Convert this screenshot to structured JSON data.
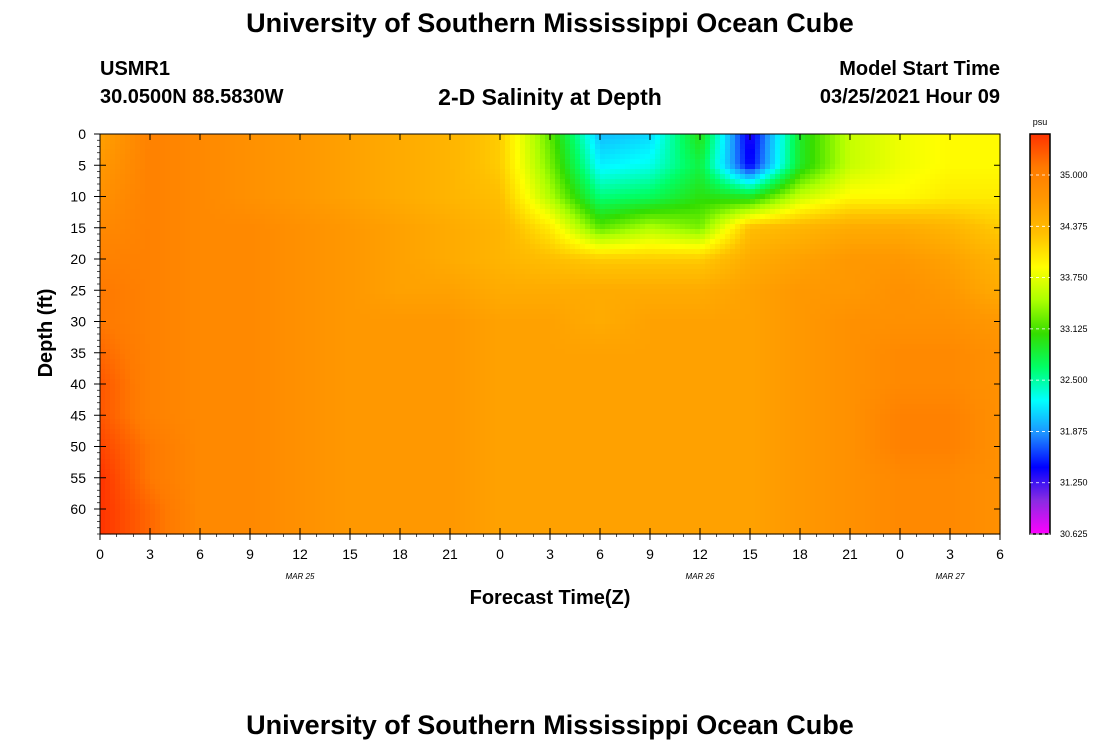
{
  "header": {
    "title": "University of Southern Mississippi Ocean Cube",
    "footer_title": "University of Southern Mississippi Ocean Cube",
    "station_id": "USMR1",
    "station_coords": "30.0500N 88.5830W",
    "chart_title": "2-D Salinity at Depth",
    "model_start_label": "Model Start Time",
    "model_start_value": "03/25/2021 Hour 09"
  },
  "colors": {
    "scale": [
      "#ff00ff",
      "#8a2be2",
      "#0000ff",
      "#1e90ff",
      "#00ffff",
      "#00ff66",
      "#33dd00",
      "#aaff00",
      "#ffff00",
      "#ffc000",
      "#ff9900",
      "#ff7a00",
      "#ff3300"
    ],
    "tick": "#000000"
  },
  "chart_data": {
    "type": "heatmap",
    "title": "2-D Salinity at Depth",
    "xlabel": "Forecast Time(Z)",
    "ylabel": "Depth (ft)",
    "x_tick_labels": [
      "0",
      "3",
      "6",
      "9",
      "12",
      "15",
      "18",
      "21",
      "0",
      "3",
      "6",
      "9",
      "12",
      "15",
      "18",
      "21",
      "0",
      "3",
      "6"
    ],
    "x_range_hours": [
      0,
      54
    ],
    "date_labels": [
      {
        "label": "MAR 25",
        "hour": 12
      },
      {
        "label": "MAR 26",
        "hour": 36
      },
      {
        "label": "MAR 27",
        "hour": 51
      }
    ],
    "y_tick_labels": [
      "0",
      "5",
      "10",
      "15",
      "20",
      "25",
      "30",
      "35",
      "40",
      "45",
      "50",
      "55",
      "60"
    ],
    "ylim": [
      0,
      64
    ],
    "y_inverted": true,
    "colorbar": {
      "unit": "psu",
      "tick_labels": [
        "35.000",
        "34.375",
        "33.750",
        "33.125",
        "32.500",
        "31.875",
        "31.250",
        "30.625"
      ],
      "range": [
        30.625,
        35.5
      ]
    },
    "grid_hours": [
      0,
      3,
      6,
      9,
      12,
      15,
      18,
      21,
      24,
      27,
      30,
      33,
      36,
      39,
      42,
      45,
      48,
      51,
      54
    ],
    "grid_depths": [
      0,
      5,
      10,
      15,
      20,
      25,
      30,
      35,
      40,
      45,
      50,
      55,
      60,
      64
    ],
    "values": [
      [
        34.6,
        35.0,
        34.9,
        34.8,
        34.7,
        34.6,
        34.5,
        34.4,
        34.2,
        33.2,
        32.0,
        32.1,
        33.0,
        31.3,
        32.9,
        33.6,
        33.8,
        33.9,
        33.9
      ],
      [
        34.7,
        35.0,
        34.9,
        34.8,
        34.7,
        34.6,
        34.5,
        34.4,
        34.2,
        33.3,
        32.2,
        32.3,
        32.8,
        31.4,
        32.9,
        33.6,
        33.8,
        33.9,
        33.9
      ],
      [
        34.8,
        35.0,
        34.9,
        34.8,
        34.7,
        34.6,
        34.5,
        34.4,
        34.3,
        33.5,
        32.6,
        32.7,
        33.0,
        32.9,
        33.6,
        33.9,
        33.9,
        34.0,
        34.0
      ],
      [
        34.9,
        35.0,
        34.9,
        34.9,
        34.8,
        34.7,
        34.6,
        34.5,
        34.4,
        34.0,
        33.2,
        33.5,
        33.3,
        34.3,
        34.4,
        34.5,
        34.5,
        34.4,
        34.2
      ],
      [
        35.0,
        35.0,
        34.9,
        34.9,
        34.8,
        34.7,
        34.6,
        34.5,
        34.4,
        34.3,
        34.2,
        34.2,
        34.2,
        34.5,
        34.6,
        34.7,
        34.7,
        34.6,
        34.4
      ],
      [
        35.1,
        35.0,
        34.9,
        34.9,
        34.8,
        34.7,
        34.6,
        34.6,
        34.5,
        34.5,
        34.5,
        34.5,
        34.5,
        34.6,
        34.7,
        34.7,
        34.8,
        34.7,
        34.5
      ],
      [
        35.1,
        35.0,
        34.9,
        34.9,
        34.8,
        34.7,
        34.7,
        34.7,
        34.6,
        34.6,
        34.5,
        34.6,
        34.6,
        34.6,
        34.7,
        34.8,
        34.8,
        34.8,
        34.7
      ],
      [
        35.2,
        35.0,
        34.9,
        34.9,
        34.8,
        34.7,
        34.7,
        34.7,
        34.6,
        34.6,
        34.6,
        34.6,
        34.6,
        34.6,
        34.7,
        34.8,
        34.9,
        34.9,
        34.8
      ],
      [
        35.3,
        35.0,
        34.9,
        34.9,
        34.8,
        34.7,
        34.7,
        34.7,
        34.6,
        34.6,
        34.6,
        34.6,
        34.6,
        34.6,
        34.7,
        34.8,
        34.9,
        34.9,
        34.8
      ],
      [
        35.3,
        35.0,
        34.9,
        34.9,
        34.8,
        34.7,
        34.7,
        34.7,
        34.6,
        34.6,
        34.6,
        34.6,
        34.6,
        34.6,
        34.7,
        34.8,
        35.0,
        35.0,
        34.8
      ],
      [
        35.4,
        35.1,
        34.9,
        34.9,
        34.8,
        34.7,
        34.7,
        34.7,
        34.6,
        34.6,
        34.6,
        34.6,
        34.6,
        34.6,
        34.7,
        34.8,
        35.0,
        35.0,
        34.8
      ],
      [
        35.5,
        35.1,
        34.9,
        34.9,
        34.8,
        34.7,
        34.7,
        34.7,
        34.6,
        34.6,
        34.6,
        34.6,
        34.6,
        34.6,
        34.7,
        34.8,
        34.9,
        34.9,
        34.8
      ],
      [
        35.5,
        35.2,
        34.9,
        34.9,
        34.8,
        34.7,
        34.7,
        34.7,
        34.6,
        34.6,
        34.6,
        34.6,
        34.6,
        34.6,
        34.7,
        34.8,
        34.9,
        34.9,
        34.8
      ],
      [
        35.5,
        35.2,
        34.9,
        34.9,
        34.8,
        34.7,
        34.7,
        34.7,
        34.6,
        34.6,
        34.6,
        34.6,
        34.6,
        34.6,
        34.7,
        34.8,
        34.9,
        34.9,
        34.8
      ]
    ]
  }
}
